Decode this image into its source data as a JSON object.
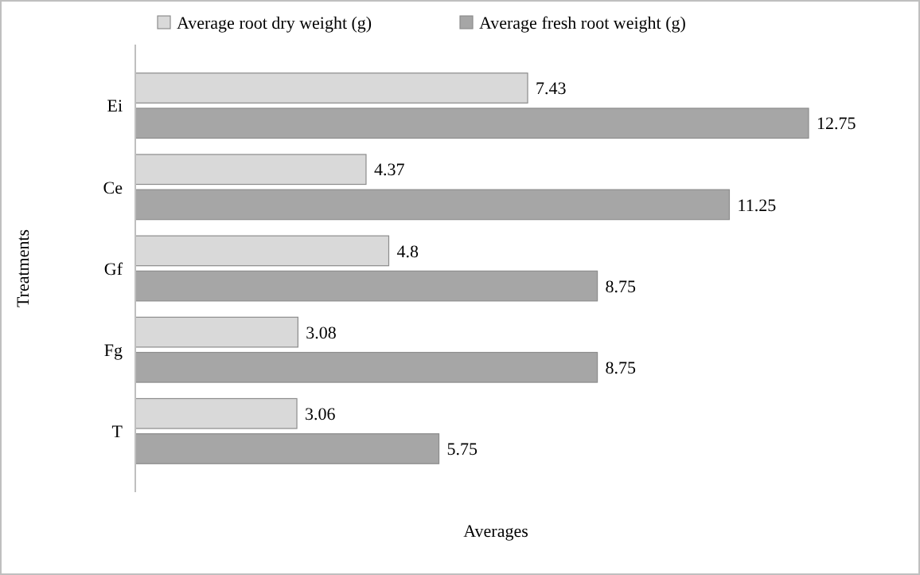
{
  "chart_data": {
    "type": "bar",
    "orientation": "horizontal",
    "xlabel": "Averages",
    "ylabel": "Treatments",
    "categories": [
      "Ei",
      "Ce",
      "Gf",
      "Fg",
      "T"
    ],
    "series": [
      {
        "name": "Average root dry weight (g)",
        "color": "#d9d9d9",
        "values": [
          7.43,
          4.37,
          4.8,
          3.08,
          3.06
        ]
      },
      {
        "name": "Average fresh root weight (g)",
        "color": "#a6a6a6",
        "values": [
          12.75,
          11.25,
          8.75,
          8.75,
          5.75
        ]
      }
    ],
    "data_labels": true,
    "legend": "top"
  }
}
